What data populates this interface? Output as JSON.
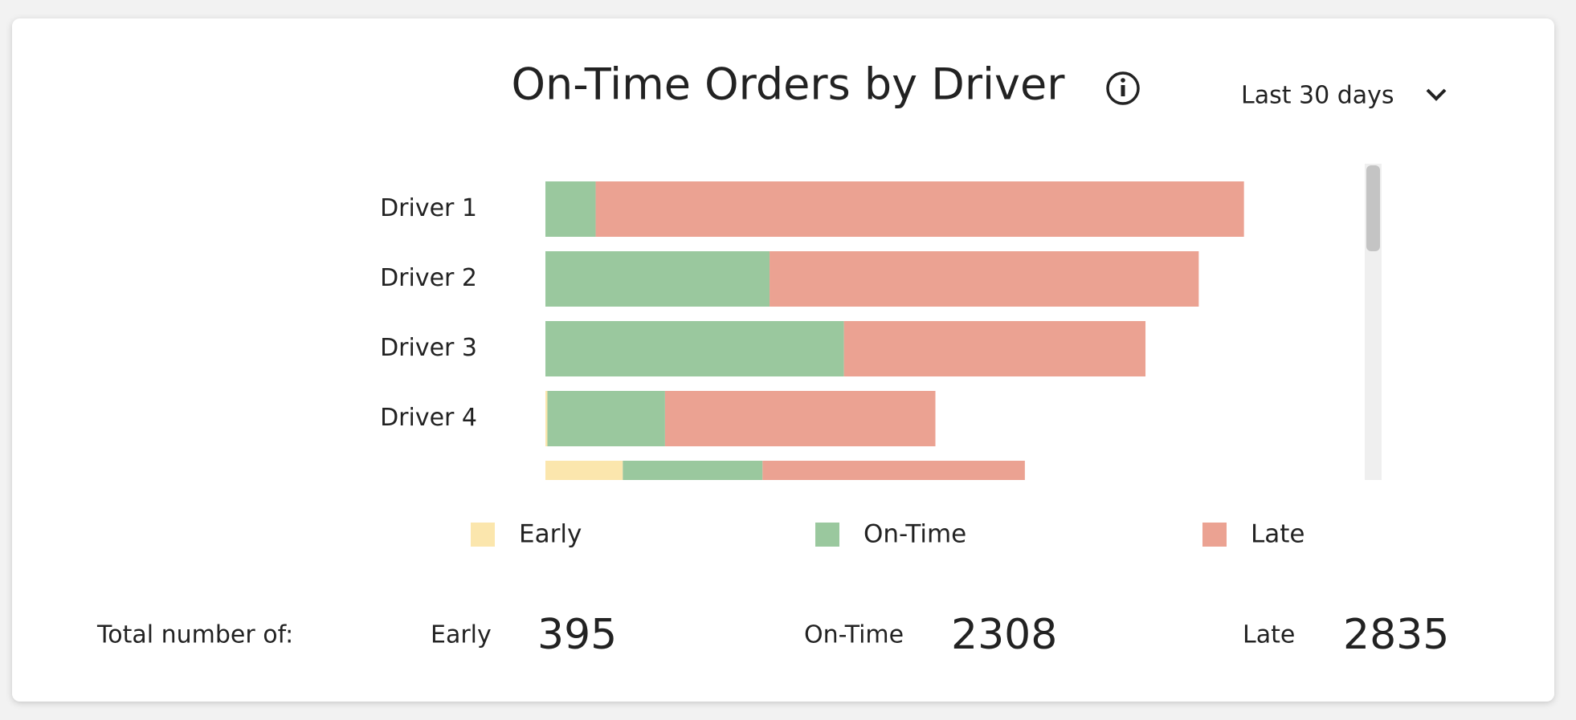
{
  "chart_data": {
    "type": "bar",
    "orientation": "horizontal",
    "stacked": true,
    "title": "On-Time Orders by Driver",
    "categories": [
      "Driver 1",
      "Driver 2",
      "Driver 3",
      "Driver 4",
      null
    ],
    "series": [
      {
        "name": "Early",
        "color": "#fbe6ad",
        "values": [
          0,
          0,
          0,
          2,
          77
        ]
      },
      {
        "name": "On-Time",
        "color": "#9ac89e",
        "values": [
          50,
          223,
          297,
          117,
          139
        ]
      },
      {
        "name": "Late",
        "color": "#eba292",
        "values": [
          645,
          427,
          300,
          269,
          261
        ]
      }
    ]
  },
  "controls": {
    "period": "Last 30 days"
  },
  "totals": {
    "label": "Total number of:",
    "items": [
      {
        "name": "Early",
        "value": 395
      },
      {
        "name": "On-Time",
        "value": 2308
      },
      {
        "name": "Late",
        "value": 2835
      }
    ]
  }
}
